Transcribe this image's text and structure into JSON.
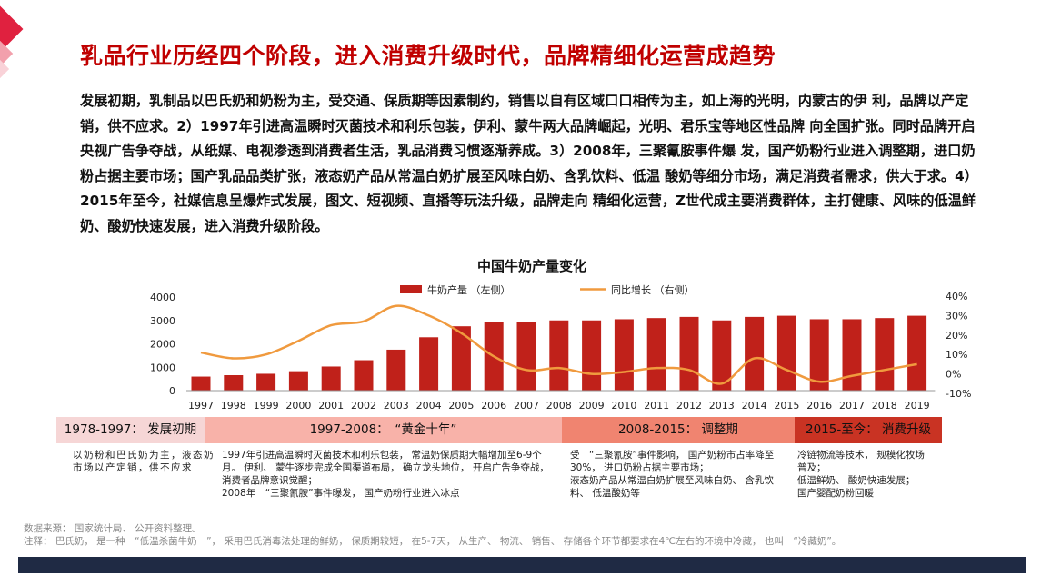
{
  "title": "乳品行业历经四个阶段，进入消费升级时代，品牌精细化运营成趋势",
  "intro": "发展初期，乳制品以巴氏奶和奶粉为主，受交通、保质期等因素制约，销售以自有区域口口相传为主，如上海的光明，内蒙古的伊 利，品牌以产定销，供不应求。2）1997年引进高温瞬时灭菌技术和利乐包装，伊利、蒙牛两大品牌崛起，光明、君乐宝等地区性品牌 向全国扩张。同时品牌开启央视广告争夺战，从纸媒、电视渗透到消费者生活，乳品消费习惯逐渐养成。3）2008年，三聚氰胺事件爆 发，国产奶粉行业进入调整期，进口奶粉占据主要市场；国产乳品品类扩张，液态奶产品从常温白奶扩展至风味白奶、含乳饮料、低温 酸奶等细分市场，满足消费者需求，供大于求。4）2015年至今，社媒信息呈爆炸式发展，图文、短视频、直播等玩法升级，品牌走向 精细化运营，Z世代成主要消费群体，主打健康、风味的低温鲜奶、酸奶快速发展，进入消费升级阶段。",
  "chart_data": {
    "type": "bar",
    "title": "中国牛奶产量变化",
    "categories": [
      "1997",
      "1998",
      "1999",
      "2000",
      "2001",
      "2002",
      "2003",
      "2004",
      "2005",
      "2006",
      "2007",
      "2008",
      "2009",
      "2010",
      "2011",
      "2012",
      "2013",
      "2014",
      "2015",
      "2016",
      "2017",
      "2018",
      "2019"
    ],
    "series": [
      {
        "name": "牛奶产量 （左侧）",
        "axis": "left",
        "type": "bar",
        "values": [
          600,
          660,
          720,
          830,
          1030,
          1300,
          1750,
          2280,
          2750,
          2950,
          2950,
          3000,
          3000,
          3050,
          3100,
          3150,
          3000,
          3150,
          3200,
          3050,
          3050,
          3100,
          3200
        ]
      },
      {
        "name": "同比增长 （右侧）",
        "axis": "right",
        "type": "line",
        "values": [
          11,
          8,
          10,
          17,
          25,
          27,
          35,
          30,
          21,
          9,
          2,
          3,
          0,
          1,
          3,
          2,
          -5,
          8,
          2,
          -4,
          -1,
          2,
          5
        ]
      }
    ],
    "left_ticks": [
      "0",
      "1000",
      "2000",
      "3000",
      "4000"
    ],
    "right_ticks": [
      "-10%",
      "0%",
      "10%",
      "20%",
      "30%",
      "40%"
    ],
    "ylim_left": [
      0,
      4000
    ],
    "ylim_right": [
      -10,
      40
    ],
    "colors": {
      "bar": "#c0211a",
      "line": "#f09a3e"
    }
  },
  "stages": [
    {
      "label": "1978-1997： 发展初期"
    },
    {
      "label": "1997-2008：　“黄金十年”"
    },
    {
      "label": "2008-2015： 调整期"
    },
    {
      "label": "2015-至今： 消费升级"
    }
  ],
  "stage_colors": [
    "#f6d6d6",
    "#f8b2a9",
    "#f08470",
    "#c93323"
  ],
  "descriptions": [
    "以奶粉和巴氏奶为主，液态奶市场以产定销，供不应求",
    "1997年引进高温瞬时灭菌技术和利乐包装， 常温奶保质期大幅增加至6-9个月。 伊利、 蒙牛逐步完成全国渠道布局， 确立龙头地位， 开启广告争夺战， 消费者品牌意识觉醒；\n2008年　“三聚氰胺”事件曝发， 国产奶粉行业进入冰点",
    "受　“三聚氰胺”事件影响， 国产奶粉市占率降至30%， 进口奶粉占据主要市场；\n液态奶产品从常温白奶扩展至风味白奶、 含乳饮料、 低温酸奶等",
    "冷链物流等技术， 规模化牧场普及；\n低温鲜奶、 酸奶快速发展；\n国产婴配奶粉回暖"
  ],
  "source_line": "数据来源：  国家统计局、  公开资料整理。",
  "note_line": "注释：  巴氏奶，  是一种　“低温杀菌牛奶　”，  采用巴氏消毒法处理的鲜奶，  保质期较短，  在5-7天，  从生产、  物流、  销售、  存储各个环节都要求在4℃左右的环境中冷藏，  也叫　“冷藏奶”。"
}
